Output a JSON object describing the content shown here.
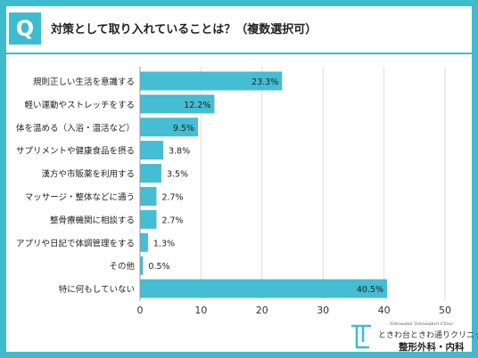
{
  "question": {
    "badge": "Q",
    "text": "対策として取り入れていることは？（複数選択可）"
  },
  "colors": {
    "accent": "#3dbccf",
    "bar": "#45bdd2",
    "grid": "#dcdcdc"
  },
  "chart_data": {
    "type": "bar",
    "orientation": "horizontal",
    "title": "",
    "xlabel": "",
    "ylabel": "",
    "xlim": [
      0,
      50
    ],
    "xticks": [
      0,
      10,
      20,
      30,
      40,
      50
    ],
    "grid": true,
    "categories": [
      "規則正しい生活を意識する",
      "軽い運動やストレッチをする",
      "体を温める（入浴・温活など）",
      "サプリメントや健康食品を摂る",
      "漢方や市販薬を利用する",
      "マッサージ・整体などに通う",
      "整骨療機関に相談する",
      "アプリや日記で体調管理をする",
      "その他",
      "特に何もしていない"
    ],
    "values": [
      23.3,
      12.2,
      9.5,
      3.8,
      3.5,
      2.7,
      2.7,
      1.3,
      0.5,
      40.5
    ],
    "value_labels": [
      "23.3%",
      "12.2%",
      "9.5%",
      "3.8%",
      "3.5%",
      "2.7%",
      "2.7%",
      "1.3%",
      "0.5%",
      "40.5%"
    ]
  },
  "logo": {
    "english": "Tokiwadai Tokiwadori Clinic",
    "name": "ときわ台ときわ通りクリニック",
    "department": "整形外科・内科"
  }
}
